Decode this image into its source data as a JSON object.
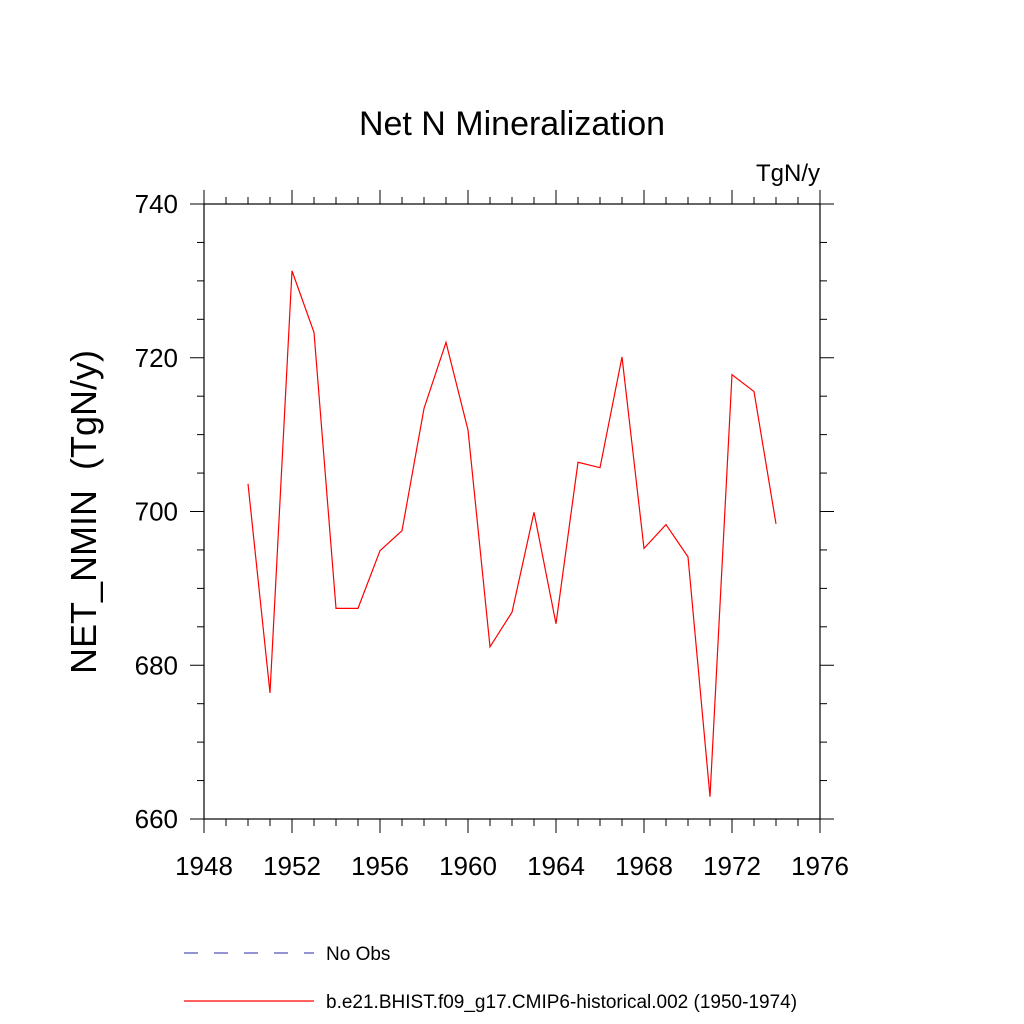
{
  "chart_data": {
    "type": "line",
    "title": "Net N Mineralization",
    "units_label": "TgN/y",
    "ylabel": "NET_NMIN  (TgN/y)",
    "xlabel": "",
    "xlim": [
      1948,
      1976
    ],
    "ylim": [
      660,
      740
    ],
    "xticks": [
      1948,
      1952,
      1956,
      1960,
      1964,
      1968,
      1972,
      1976
    ],
    "yticks": [
      660,
      680,
      700,
      720,
      740
    ],
    "x_minor_step": 1,
    "y_minor_step": 5,
    "grid": false,
    "legend_position": "bottom",
    "series": [
      {
        "name": "No Obs",
        "color": "#5555bb",
        "dash": "dashed",
        "x": [],
        "values": []
      },
      {
        "name": "b.e21.BHIST.f09_g17.CMIP6-historical.002 (1950-1974)",
        "color": "#ff0000",
        "dash": "solid",
        "x": [
          1950,
          1951,
          1952,
          1953,
          1954,
          1955,
          1956,
          1957,
          1958,
          1959,
          1960,
          1961,
          1962,
          1963,
          1964,
          1965,
          1966,
          1967,
          1968,
          1969,
          1970,
          1971,
          1972,
          1973,
          1974
        ],
        "values": [
          703.6,
          676.4,
          731.3,
          723.3,
          687.4,
          687.4,
          694.9,
          697.5,
          713.4,
          722.0,
          710.6,
          682.4,
          686.9,
          699.9,
          685.4,
          706.4,
          705.7,
          720.1,
          695.2,
          698.3,
          694.1,
          662.9,
          717.8,
          715.6,
          698.4
        ]
      }
    ]
  }
}
